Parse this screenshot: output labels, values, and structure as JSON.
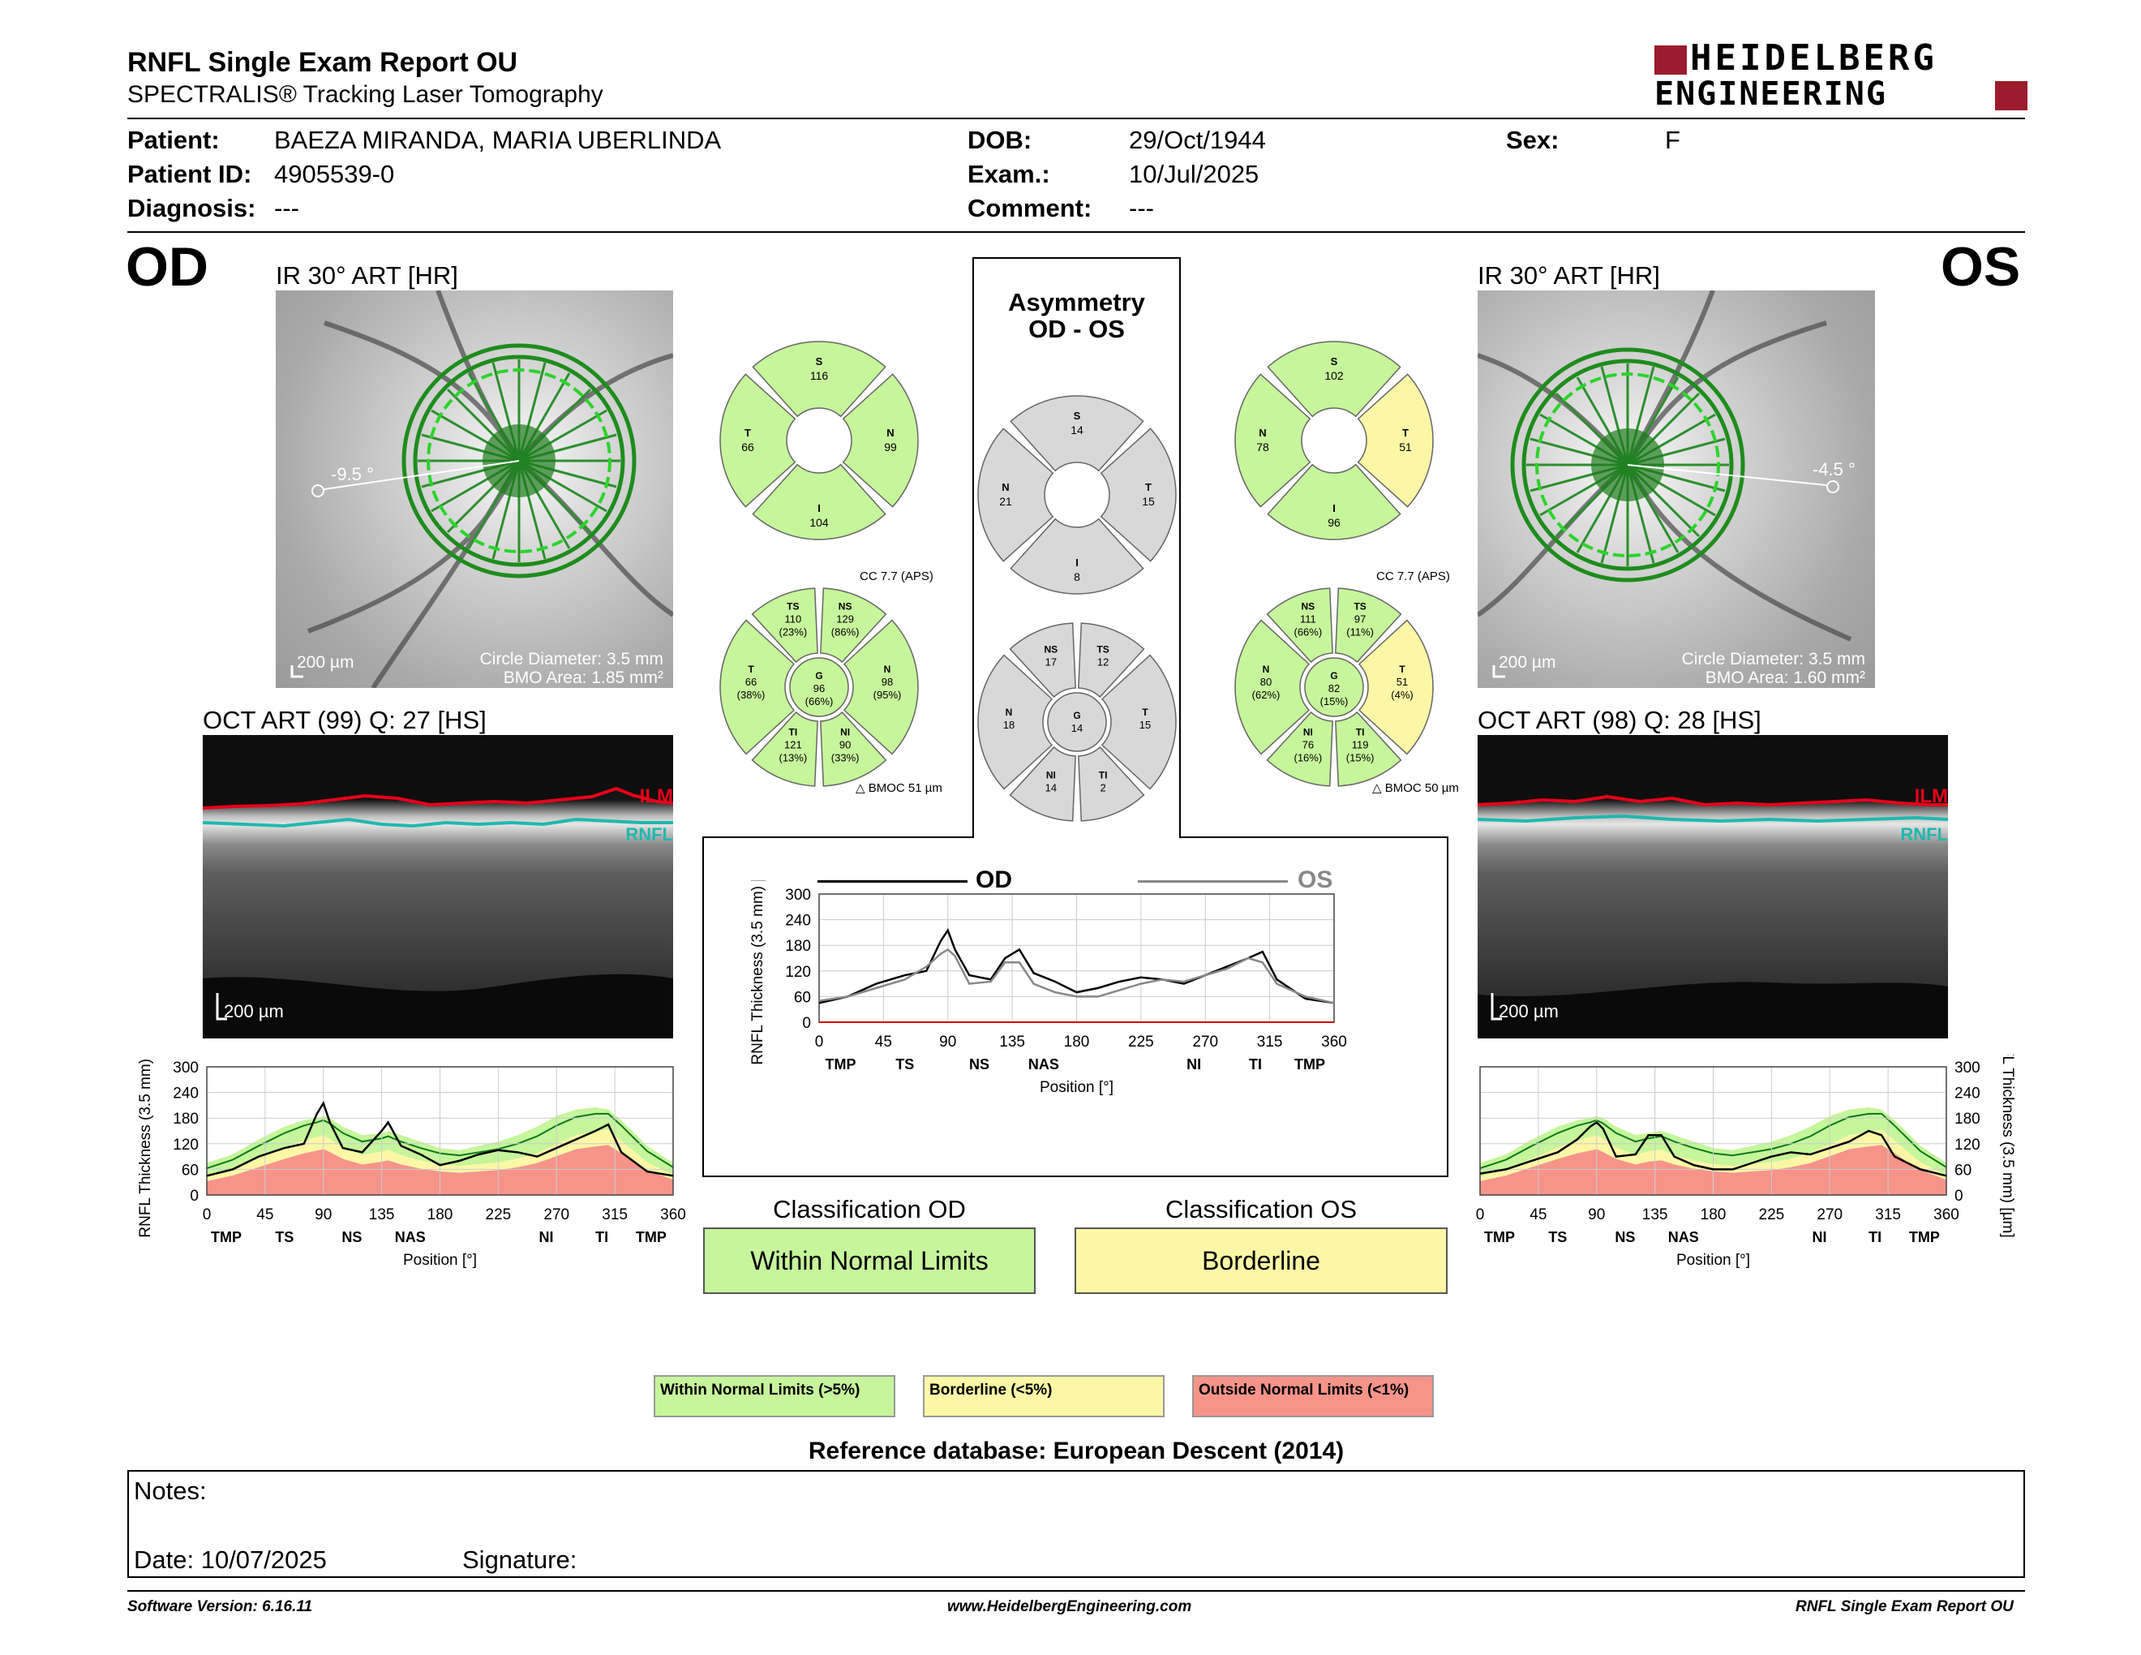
{
  "header": {
    "title": "RNFL Single Exam Report OU",
    "subtitle": "SPECTRALIS® Tracking Laser Tomography",
    "brand_line1": "HEIDELBERG",
    "brand_line2": "ENGINEERING"
  },
  "patient": {
    "patient_label": "Patient:",
    "patient_value": "BAEZA MIRANDA, MARIA UBERLINDA",
    "id_label": "Patient ID:",
    "id_value": "4905539-0",
    "diagnosis_label": "Diagnosis:",
    "diagnosis_value": "---",
    "dob_label": "DOB:",
    "dob_value": "29/Oct/1944",
    "exam_label": "Exam.:",
    "exam_value": "10/Jul/2025",
    "comment_label": "Comment:",
    "comment_value": "---",
    "sex_label": "Sex:",
    "sex_value": "F"
  },
  "od": {
    "eye": "OD",
    "ir_title": "IR 30° ART [HR]",
    "angle": "-9.5 °",
    "scale": "200 µm",
    "circle_diameter": "Circle Diameter: 3.5 mm",
    "bmo_area": "BMO Area: 1.85 mm²",
    "oct_title": "OCT ART (99) Q: 27 [HS]",
    "oct_scale": "200 µm",
    "ilm": "ILM",
    "rnfl": "RNFL",
    "quad": {
      "S": "116",
      "N": "99",
      "I": "104",
      "T": "66"
    },
    "cc": "CC 7.7 (APS)",
    "bmoc": "BMOC 51 µm",
    "sectors": {
      "TS": {
        "label": "TS",
        "value": "110",
        "pct": "(23%)"
      },
      "NS": {
        "label": "NS",
        "value": "129",
        "pct": "(86%)"
      },
      "T": {
        "label": "T",
        "value": "66",
        "pct": "(38%)"
      },
      "G": {
        "label": "G",
        "value": "96",
        "pct": "(66%)"
      },
      "N": {
        "label": "N",
        "value": "98",
        "pct": "(95%)"
      },
      "TI": {
        "label": "TI",
        "value": "121",
        "pct": "(13%)"
      },
      "NI": {
        "label": "NI",
        "value": "90",
        "pct": "(33%)"
      }
    },
    "classification_label": "Classification OD",
    "classification": "Within Normal Limits"
  },
  "os": {
    "eye": "OS",
    "ir_title": "IR 30° ART [HR]",
    "angle": "-4.5 °",
    "scale": "200 µm",
    "circle_diameter": "Circle Diameter: 3.5 mm",
    "bmo_area": "BMO Area: 1.60 mm²",
    "oct_title": "OCT ART (98) Q: 28 [HS]",
    "oct_scale": "200 µm",
    "ilm": "ILM",
    "rnfl": "RNFL",
    "quad": {
      "S": "102",
      "N": "78",
      "I": "96",
      "T": "51"
    },
    "cc": "CC 7.7 (APS)",
    "bmoc": "BMOC 50 µm",
    "sectors": {
      "NS": {
        "label": "NS",
        "value": "111",
        "pct": "(66%)"
      },
      "TS": {
        "label": "TS",
        "value": "97",
        "pct": "(11%)"
      },
      "N": {
        "label": "N",
        "value": "80",
        "pct": "(62%)"
      },
      "G": {
        "label": "G",
        "value": "82",
        "pct": "(15%)"
      },
      "T": {
        "label": "T",
        "value": "51",
        "pct": "(4%)"
      },
      "NI": {
        "label": "NI",
        "value": "76",
        "pct": "(16%)"
      },
      "TI": {
        "label": "TI",
        "value": "119",
        "pct": "(15%)"
      }
    },
    "classification_label": "Classification OS",
    "classification": "Borderline"
  },
  "asymmetry": {
    "title1": "Asymmetry",
    "title2": "OD - OS",
    "quad": {
      "S": "14",
      "N": "21",
      "T": "15",
      "I": "8"
    },
    "sectors": {
      "NS": "17",
      "TS": "12",
      "N": "18",
      "G": "14",
      "T": "15",
      "NI": "14",
      "TI": "2"
    }
  },
  "charts": {
    "ylabel": "RNFL Thickness (3.5 mm) [µm]",
    "xlabel": "Position [°]",
    "yticks": [
      "0",
      "60",
      "120",
      "180",
      "240",
      "300"
    ],
    "xticks": [
      "0",
      "45",
      "90",
      "135",
      "180",
      "225",
      "270",
      "315",
      "360"
    ],
    "sector_labels": [
      "TMP",
      "TS",
      "NS",
      "NAS",
      "NI",
      "TI",
      "TMP"
    ],
    "legend_od": "OD",
    "legend_os": "OS"
  },
  "chart_data": [
    {
      "type": "line",
      "title": "",
      "eye": "OD",
      "ylim": [
        0,
        300
      ],
      "xlim": [
        0,
        360
      ],
      "x": [
        0,
        20,
        40,
        60,
        75,
        85,
        90,
        95,
        105,
        120,
        135,
        140,
        150,
        165,
        180,
        195,
        210,
        225,
        240,
        255,
        270,
        285,
        300,
        310,
        320,
        340,
        360
      ],
      "series": [
        {
          "values": [
            45,
            60,
            90,
            110,
            120,
            190,
            215,
            170,
            110,
            100,
            150,
            170,
            115,
            95,
            70,
            80,
            95,
            105,
            100,
            90,
            110,
            130,
            150,
            165,
            100,
            55,
            45
          ]
        }
      ],
      "normal_band": {
        "lower": [
          50,
          70,
          100,
          130,
          150,
          160,
          165,
          155,
          130,
          110,
          120,
          125,
          110,
          95,
          85,
          80,
          85,
          90,
          100,
          115,
          140,
          165,
          175,
          180,
          150,
          90,
          55
        ],
        "upper": [
          75,
          95,
          130,
          160,
          175,
          180,
          185,
          180,
          160,
          140,
          145,
          150,
          140,
          125,
          110,
          105,
          115,
          125,
          140,
          160,
          185,
          200,
          205,
          200,
          175,
          115,
          75
        ]
      }
    },
    {
      "type": "line",
      "title": "",
      "eye": "OS",
      "ylim": [
        0,
        300
      ],
      "xlim": [
        0,
        360
      ],
      "x": [
        0,
        20,
        40,
        60,
        75,
        85,
        90,
        95,
        105,
        120,
        130,
        140,
        150,
        165,
        180,
        195,
        210,
        225,
        240,
        255,
        270,
        285,
        300,
        310,
        320,
        340,
        360
      ],
      "series": [
        {
          "values": [
            50,
            60,
            80,
            100,
            130,
            160,
            170,
            155,
            90,
            95,
            140,
            140,
            90,
            70,
            60,
            60,
            75,
            90,
            100,
            95,
            110,
            125,
            150,
            140,
            90,
            60,
            45
          ]
        }
      ],
      "normal_band": {
        "lower": [
          50,
          70,
          100,
          130,
          150,
          160,
          165,
          155,
          130,
          110,
          120,
          125,
          110,
          95,
          85,
          80,
          85,
          90,
          100,
          115,
          140,
          165,
          175,
          180,
          150,
          90,
          55
        ],
        "upper": [
          75,
          95,
          130,
          160,
          175,
          180,
          185,
          180,
          160,
          140,
          145,
          150,
          140,
          125,
          110,
          105,
          115,
          125,
          140,
          160,
          185,
          200,
          205,
          200,
          175,
          115,
          75
        ]
      }
    },
    {
      "type": "line",
      "title": "",
      "ylim": [
        0,
        300
      ],
      "xlim": [
        0,
        360
      ],
      "x": [
        0,
        20,
        40,
        60,
        75,
        85,
        90,
        95,
        105,
        120,
        130,
        140,
        150,
        165,
        180,
        195,
        210,
        225,
        240,
        255,
        270,
        285,
        300,
        310,
        320,
        340,
        360
      ],
      "series": [
        {
          "name": "OD",
          "values": [
            45,
            60,
            90,
            110,
            120,
            190,
            215,
            170,
            110,
            100,
            150,
            170,
            115,
            95,
            70,
            80,
            95,
            105,
            100,
            90,
            110,
            130,
            150,
            165,
            100,
            55,
            45
          ]
        },
        {
          "name": "OS",
          "values": [
            50,
            60,
            80,
            100,
            130,
            160,
            170,
            155,
            90,
            95,
            140,
            140,
            90,
            70,
            60,
            60,
            75,
            90,
            100,
            95,
            110,
            125,
            150,
            140,
            90,
            60,
            45
          ]
        }
      ]
    }
  ],
  "legend": {
    "normal": "Within Normal Limits (>5%)",
    "borderline": "Borderline (<5%)",
    "outside": "Outside Normal Limits (<1%)"
  },
  "reference": "Reference database: European Descent (2014)",
  "notes": {
    "notes_label": "Notes:",
    "date_label": "Date: 10/07/2025",
    "signature_label": "Signature:"
  },
  "footer": {
    "software": "Software Version: 6.16.11",
    "website": "www.HeidelbergEngineering.com",
    "report": "RNFL Single Exam Report OU"
  },
  "colors": {
    "normal": "#c6f59b",
    "borderline": "#fbf7a6",
    "outside": "#f6948a",
    "gray": "#d8d8d8",
    "ilm": "#e8001a",
    "rnfl": "#1fb8b0",
    "brand": "#9c1b2c"
  }
}
